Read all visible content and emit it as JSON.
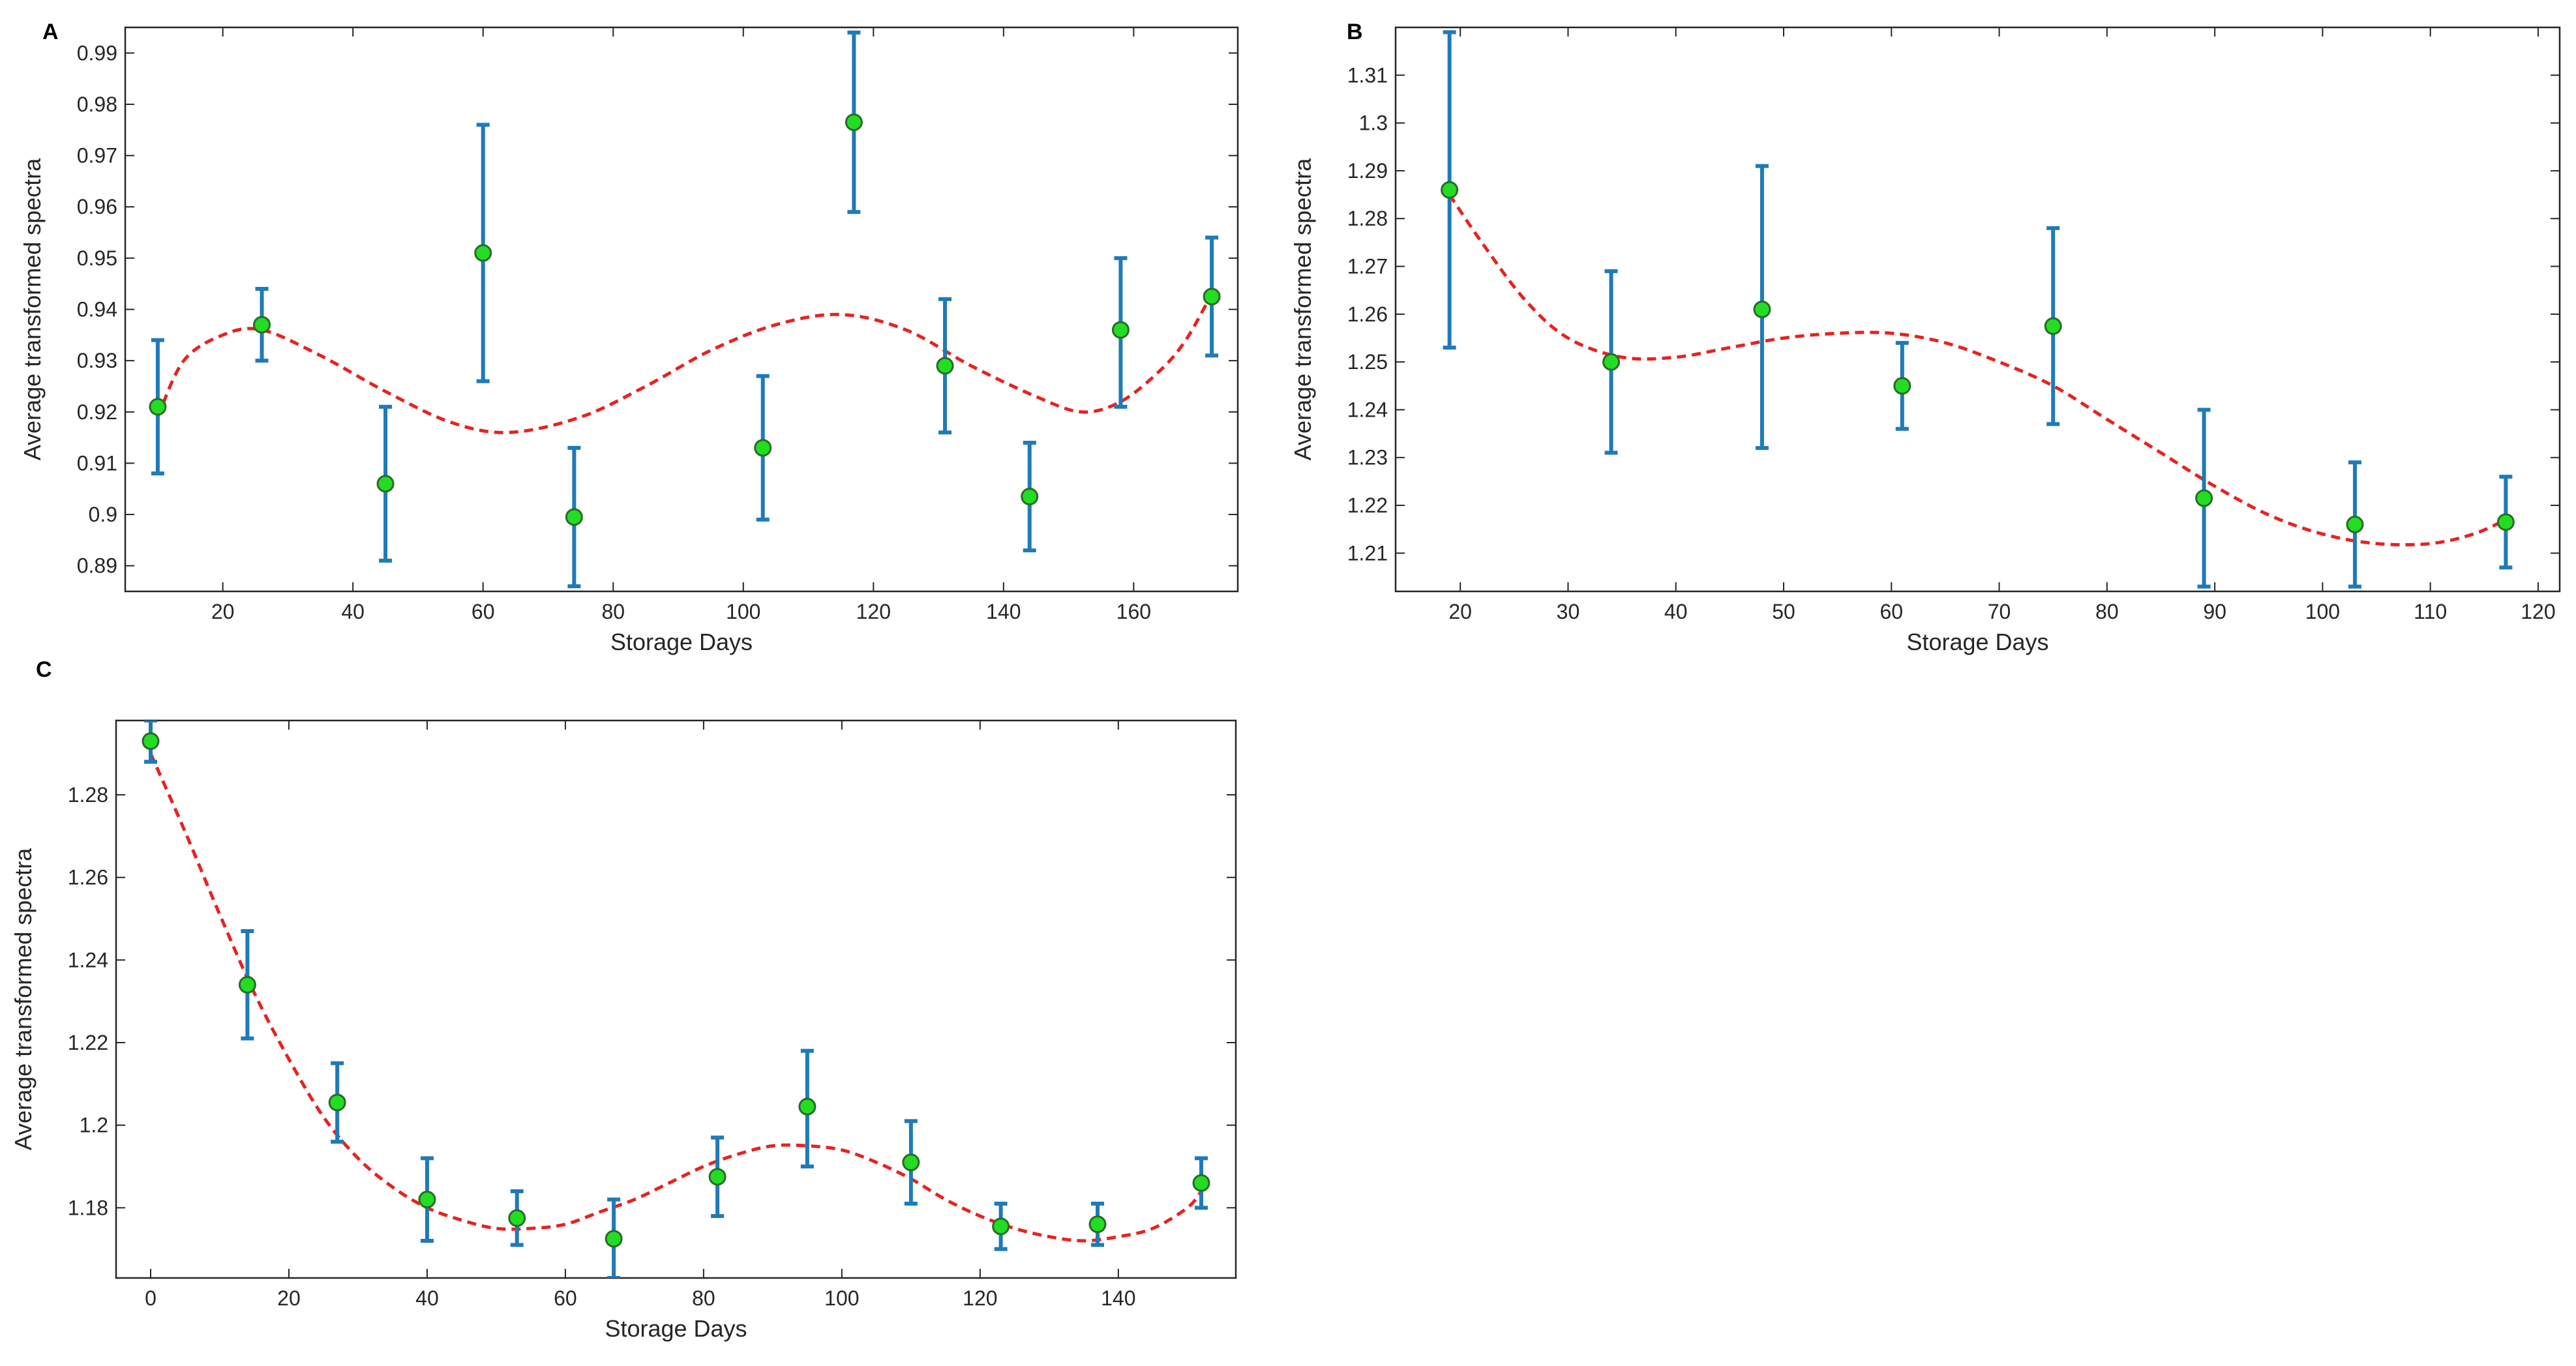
{
  "colors": {
    "errorbar": "#1f7ab8",
    "marker_fill": "#22dd22",
    "marker_edge": "#2a6a2a",
    "fit_line": "#e8221e",
    "axis": "#262626"
  },
  "chart_data": [
    {
      "panel": "A",
      "type": "scatter",
      "xlabel": "Storage Days",
      "ylabel": "Average transformed spectra",
      "xlim": [
        5,
        176
      ],
      "ylim": [
        0.885,
        0.995
      ],
      "xticks": [
        20,
        40,
        60,
        80,
        100,
        120,
        140,
        160
      ],
      "yticks": [
        0.89,
        0.9,
        0.91,
        0.92,
        0.93,
        0.94,
        0.95,
        0.96,
        0.97,
        0.98,
        0.99
      ],
      "ytick_labels": [
        "0.89",
        "0.9",
        "0.91",
        "0.92",
        "0.93",
        "0.94",
        "0.95",
        "0.96",
        "0.97",
        "0.98",
        "0.99"
      ],
      "points": [
        {
          "x": 10,
          "y": 0.921,
          "lo": 0.908,
          "hi": 0.934
        },
        {
          "x": 26,
          "y": 0.937,
          "lo": 0.93,
          "hi": 0.944
        },
        {
          "x": 45,
          "y": 0.906,
          "lo": 0.891,
          "hi": 0.921
        },
        {
          "x": 60,
          "y": 0.951,
          "lo": 0.926,
          "hi": 0.976
        },
        {
          "x": 74,
          "y": 0.8995,
          "lo": 0.886,
          "hi": 0.913
        },
        {
          "x": 103,
          "y": 0.913,
          "lo": 0.899,
          "hi": 0.927
        },
        {
          "x": 117,
          "y": 0.9765,
          "lo": 0.959,
          "hi": 0.994
        },
        {
          "x": 131,
          "y": 0.929,
          "lo": 0.916,
          "hi": 0.942
        },
        {
          "x": 144,
          "y": 0.9035,
          "lo": 0.893,
          "hi": 0.914
        },
        {
          "x": 158,
          "y": 0.936,
          "lo": 0.921,
          "hi": 0.95
        },
        {
          "x": 172,
          "y": 0.9425,
          "lo": 0.931,
          "hi": 0.954
        }
      ],
      "fit": [
        [
          10,
          0.919
        ],
        [
          14,
          0.93
        ],
        [
          20,
          0.935
        ],
        [
          26,
          0.936
        ],
        [
          35,
          0.931
        ],
        [
          45,
          0.924
        ],
        [
          55,
          0.918
        ],
        [
          64,
          0.916
        ],
        [
          75,
          0.919
        ],
        [
          85,
          0.925
        ],
        [
          95,
          0.932
        ],
        [
          105,
          0.937
        ],
        [
          115,
          0.939
        ],
        [
          125,
          0.936
        ],
        [
          135,
          0.929
        ],
        [
          145,
          0.923
        ],
        [
          152,
          0.92
        ],
        [
          158,
          0.922
        ],
        [
          164,
          0.928
        ],
        [
          168,
          0.934
        ],
        [
          172,
          0.943
        ]
      ]
    },
    {
      "panel": "B",
      "type": "scatter",
      "xlabel": "Storage Days",
      "ylabel": "Average transformed spectra",
      "xlim": [
        14,
        122
      ],
      "ylim": [
        1.202,
        1.32
      ],
      "xticks": [
        20,
        30,
        40,
        50,
        60,
        70,
        80,
        90,
        100,
        110,
        120
      ],
      "yticks": [
        1.21,
        1.22,
        1.23,
        1.24,
        1.25,
        1.26,
        1.27,
        1.28,
        1.29,
        1.3,
        1.31
      ],
      "ytick_labels": [
        "1.21",
        "1.22",
        "1.23",
        "1.24",
        "1.25",
        "1.26",
        "1.27",
        "1.28",
        "1.29",
        "1.3",
        "1.31"
      ],
      "points": [
        {
          "x": 19,
          "y": 1.286,
          "lo": 1.253,
          "hi": 1.319
        },
        {
          "x": 34,
          "y": 1.25,
          "lo": 1.231,
          "hi": 1.269
        },
        {
          "x": 48,
          "y": 1.261,
          "lo": 1.232,
          "hi": 1.291
        },
        {
          "x": 61,
          "y": 1.245,
          "lo": 1.236,
          "hi": 1.254
        },
        {
          "x": 75,
          "y": 1.2575,
          "lo": 1.237,
          "hi": 1.278
        },
        {
          "x": 89,
          "y": 1.2215,
          "lo": 1.203,
          "hi": 1.24
        },
        {
          "x": 103,
          "y": 1.216,
          "lo": 1.203,
          "hi": 1.229
        },
        {
          "x": 117,
          "y": 1.2165,
          "lo": 1.207,
          "hi": 1.226
        }
      ],
      "fit": [
        [
          19,
          1.285
        ],
        [
          22,
          1.275
        ],
        [
          26,
          1.263
        ],
        [
          30,
          1.255
        ],
        [
          35,
          1.251
        ],
        [
          40,
          1.251
        ],
        [
          45,
          1.253
        ],
        [
          50,
          1.255
        ],
        [
          55,
          1.256
        ],
        [
          60,
          1.256
        ],
        [
          65,
          1.254
        ],
        [
          70,
          1.25
        ],
        [
          75,
          1.245
        ],
        [
          80,
          1.238
        ],
        [
          85,
          1.231
        ],
        [
          90,
          1.224
        ],
        [
          95,
          1.218
        ],
        [
          100,
          1.214
        ],
        [
          105,
          1.212
        ],
        [
          110,
          1.212
        ],
        [
          114,
          1.214
        ],
        [
          117,
          1.217
        ]
      ]
    },
    {
      "panel": "C",
      "type": "scatter",
      "xlabel": "Storage Days",
      "ylabel": "Average transformed spectra",
      "xlim": [
        -5,
        157
      ],
      "ylim": [
        1.163,
        1.298
      ],
      "xticks": [
        0,
        20,
        40,
        60,
        80,
        100,
        120,
        140
      ],
      "yticks": [
        1.18,
        1.2,
        1.22,
        1.24,
        1.26,
        1.28
      ],
      "ytick_labels": [
        "1.18",
        "1.2",
        "1.22",
        "1.24",
        "1.26",
        "1.28"
      ],
      "points": [
        {
          "x": 0,
          "y": 1.293,
          "lo": 1.288,
          "hi": 1.298
        },
        {
          "x": 14,
          "y": 1.234,
          "lo": 1.221,
          "hi": 1.247
        },
        {
          "x": 27,
          "y": 1.2055,
          "lo": 1.196,
          "hi": 1.215
        },
        {
          "x": 40,
          "y": 1.182,
          "lo": 1.172,
          "hi": 1.192
        },
        {
          "x": 53,
          "y": 1.1775,
          "lo": 1.171,
          "hi": 1.184
        },
        {
          "x": 67,
          "y": 1.1725,
          "lo": 1.163,
          "hi": 1.182
        },
        {
          "x": 82,
          "y": 1.1875,
          "lo": 1.178,
          "hi": 1.197
        },
        {
          "x": 95,
          "y": 1.2045,
          "lo": 1.19,
          "hi": 1.218
        },
        {
          "x": 110,
          "y": 1.191,
          "lo": 1.181,
          "hi": 1.201
        },
        {
          "x": 123,
          "y": 1.1755,
          "lo": 1.17,
          "hi": 1.181
        },
        {
          "x": 137,
          "y": 1.176,
          "lo": 1.171,
          "hi": 1.181
        },
        {
          "x": 152,
          "y": 1.186,
          "lo": 1.18,
          "hi": 1.192
        }
      ],
      "fit": [
        [
          0,
          1.29
        ],
        [
          5,
          1.271
        ],
        [
          10,
          1.251
        ],
        [
          15,
          1.232
        ],
        [
          20,
          1.216
        ],
        [
          25,
          1.202
        ],
        [
          30,
          1.192
        ],
        [
          35,
          1.185
        ],
        [
          40,
          1.18
        ],
        [
          45,
          1.177
        ],
        [
          50,
          1.175
        ],
        [
          55,
          1.175
        ],
        [
          60,
          1.176
        ],
        [
          65,
          1.179
        ],
        [
          70,
          1.182
        ],
        [
          75,
          1.186
        ],
        [
          80,
          1.19
        ],
        [
          85,
          1.193
        ],
        [
          90,
          1.195
        ],
        [
          95,
          1.195
        ],
        [
          100,
          1.194
        ],
        [
          105,
          1.191
        ],
        [
          110,
          1.187
        ],
        [
          115,
          1.182
        ],
        [
          120,
          1.178
        ],
        [
          125,
          1.175
        ],
        [
          130,
          1.173
        ],
        [
          135,
          1.172
        ],
        [
          140,
          1.173
        ],
        [
          145,
          1.175
        ],
        [
          150,
          1.18
        ],
        [
          152,
          1.184
        ]
      ]
    }
  ]
}
